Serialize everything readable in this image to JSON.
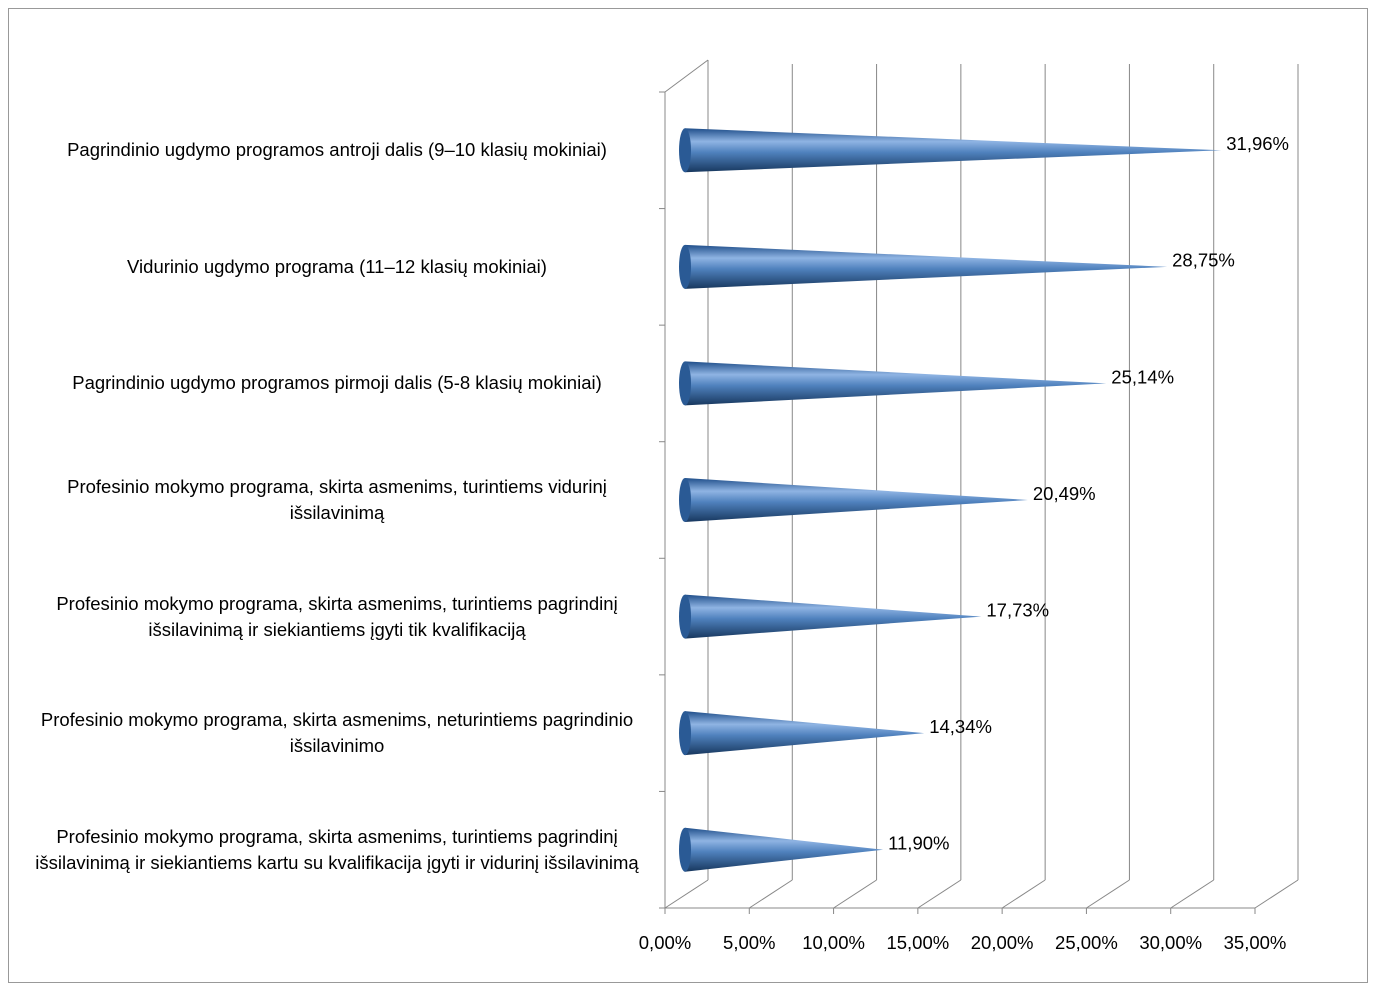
{
  "chart_data": {
    "type": "bar",
    "categories": [
      "Pagrindinio ugdymo programos antroji dalis (9–10 klasių mokiniai)",
      "Vidurinio ugdymo programa (11–12 klasių mokiniai)",
      "Pagrindinio ugdymo programos pirmoji dalis (5-8 klasių mokiniai)",
      "Profesinio mokymo programa, skirta asmenims, turintiems vidurinį išsilavinimą",
      "Profesinio mokymo programa, skirta asmenims, turintiems pagrindinį išsilavinimą ir siekiantiems įgyti tik kvalifikaciją",
      "Profesinio mokymo programa, skirta asmenims, neturintiems pagrindinio išsilavinimo",
      "Profesinio mokymo programa, skirta asmenims, turintiems pagrindinį išsilavinimą ir siekiantiems kartu su kvalifikacija įgyti ir vidurinį išsilavinimą"
    ],
    "values": [
      31.96,
      28.75,
      25.14,
      20.49,
      17.73,
      14.34,
      11.9
    ],
    "value_labels": [
      "31,96%",
      "28,75%",
      "25,14%",
      "20,49%",
      "17,73%",
      "14,34%",
      "11,90%"
    ],
    "color": "#4f81bd",
    "xlim": [
      0,
      35
    ],
    "xticks": [
      {
        "value": 0,
        "label": "0,00%"
      },
      {
        "value": 5,
        "label": "5,00%"
      },
      {
        "value": 10,
        "label": "10,00%"
      },
      {
        "value": 15,
        "label": "15,00%"
      },
      {
        "value": 20,
        "label": "20,00%"
      },
      {
        "value": 25,
        "label": "25,00%"
      },
      {
        "value": 30,
        "label": "30,00%"
      },
      {
        "value": 35,
        "label": "35,00%"
      }
    ],
    "grid": true
  }
}
